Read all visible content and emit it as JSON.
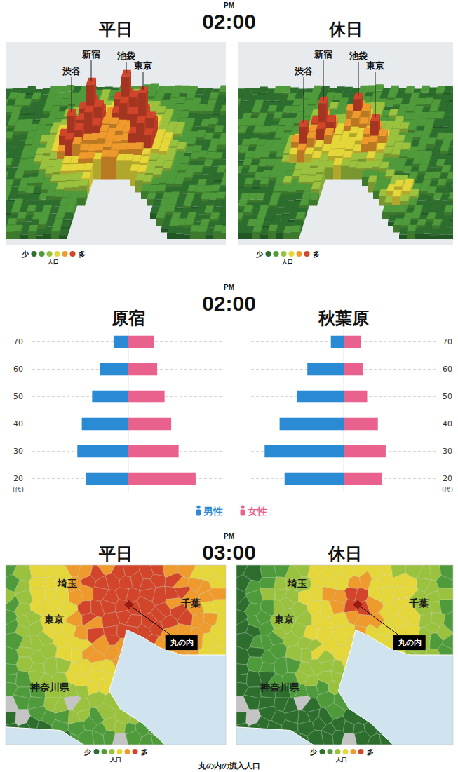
{
  "sections": [
    {
      "time_label": "PM",
      "time": "02:00"
    },
    {
      "time_label": "PM",
      "time": "02:00"
    },
    {
      "time_label": "PM",
      "time": "03:00"
    }
  ],
  "density_maps": {
    "panels": [
      {
        "title": "平日",
        "landmarks": [
          "渋谷",
          "新宿",
          "池袋",
          "東京"
        ]
      },
      {
        "title": "休日",
        "landmarks": [
          "渋谷",
          "新宿",
          "池袋",
          "東京"
        ]
      }
    ],
    "legend": {
      "low": "少",
      "high": "多",
      "label": "人口",
      "colors": [
        "#2d6e2f",
        "#4f9a3a",
        "#9ac23f",
        "#e5d63a",
        "#ee9a2c",
        "#d2452a"
      ]
    }
  },
  "chart_data": [
    {
      "type": "bar",
      "orientation": "horizontal",
      "title": "原宿",
      "y_label": "(代)",
      "categories": [
        "70",
        "60",
        "50",
        "40",
        "30",
        "20"
      ],
      "series": [
        {
          "name": "男性",
          "color": "#2a8ad4",
          "values": [
            20,
            38,
            49,
            63,
            69,
            57
          ]
        },
        {
          "name": "女性",
          "color": "#e9628e",
          "values": [
            35,
            39,
            49,
            58,
            68,
            91
          ]
        }
      ],
      "xlim": [
        0,
        130
      ],
      "grid": true,
      "tick_labels": "y",
      "legend": "bottom"
    },
    {
      "type": "bar",
      "orientation": "horizontal",
      "title": "秋葉原",
      "y_label": "(代)",
      "categories": [
        "70",
        "60",
        "50",
        "40",
        "30",
        "20"
      ],
      "series": [
        {
          "name": "男性",
          "color": "#2a8ad4",
          "values": [
            18,
            51,
            66,
            90,
            111,
            83
          ]
        },
        {
          "name": "女性",
          "color": "#e9628e",
          "values": [
            24,
            27,
            33,
            48,
            59,
            54
          ]
        }
      ],
      "xlim": [
        0,
        130
      ],
      "grid": true,
      "tick_labels": "y",
      "legend": "bottom"
    }
  ],
  "inflow_maps": {
    "panels": [
      {
        "title": "平日",
        "regions": [
          "埼玉",
          "東京",
          "千葉",
          "神奈川県"
        ],
        "callout": "丸の内"
      },
      {
        "title": "休日",
        "regions": [
          "埼玉",
          "東京",
          "千葉",
          "神奈川県"
        ],
        "callout": "丸の内"
      }
    ],
    "legend": {
      "low": "少",
      "high": "多",
      "label": "人口",
      "colors": [
        "#2d6e2f",
        "#4f9a3a",
        "#9ac23f",
        "#e5d63a",
        "#ee9a2c",
        "#d2452a"
      ]
    },
    "caption": "丸の内の流入人口"
  }
}
